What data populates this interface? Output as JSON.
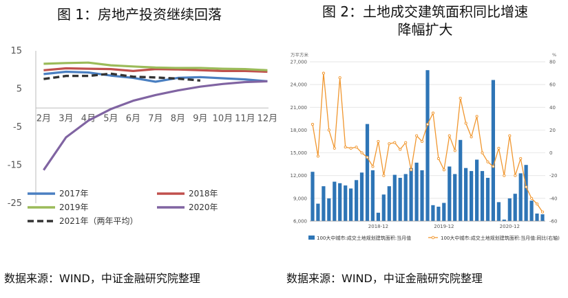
{
  "figure1": {
    "title": "图 1：房地产投资继续回落",
    "source": "数据来源：WIND，中证金融研究院整理"
  },
  "figure2": {
    "title_line1": "图 2：土地成交建筑面积同比增速",
    "title_line2": "降幅扩大",
    "source": "数据来源：WIND，中证金融研究院整理"
  },
  "chart_data": [
    {
      "type": "line",
      "title": "图 1：房地产投资继续回落",
      "categories": [
        "2月",
        "3月",
        "4月",
        "5月",
        "6月",
        "7月",
        "8月",
        "9月",
        "10月",
        "11月",
        "12月"
      ],
      "ylim": [
        -25,
        15
      ],
      "yticks": [
        15,
        5,
        -5,
        -15,
        -25
      ],
      "grid": false,
      "legend_position": "bottom",
      "series": [
        {
          "name": "2017年",
          "color": "#4a7fc1",
          "dashed": false,
          "values": [
            8.9,
            9.5,
            9.3,
            8.5,
            7.9,
            6.9,
            7.9,
            8.1,
            7.8,
            7.5,
            7.0
          ]
        },
        {
          "name": "2018年",
          "color": "#c0504d",
          "dashed": false,
          "values": [
            9.9,
            10.4,
            10.3,
            10.2,
            9.7,
            10.2,
            10.1,
            9.9,
            9.7,
            9.7,
            9.5
          ]
        },
        {
          "name": "2019年",
          "color": "#9bbb59",
          "dashed": false,
          "values": [
            11.6,
            11.8,
            11.9,
            11.2,
            10.9,
            10.6,
            10.5,
            10.5,
            10.3,
            10.2,
            9.9
          ]
        },
        {
          "name": "2020年",
          "color": "#8064a2",
          "dashed": false,
          "values": [
            -16.3,
            -7.7,
            -3.3,
            -0.3,
            1.9,
            3.4,
            4.6,
            5.6,
            6.3,
            6.8,
            7.0
          ]
        },
        {
          "name": "2021年（两年平均）",
          "color": "#333333",
          "dashed": true,
          "values": [
            7.6,
            8.4,
            8.4,
            9.0,
            8.2,
            8.0,
            7.7,
            7.2,
            null,
            null,
            null
          ]
        }
      ]
    },
    {
      "type": "bar",
      "title": "图 2：土地成交建筑面积同比增速降幅扩大",
      "left_unit": "万平方米",
      "right_unit": "%",
      "ylim_left": [
        6000,
        27000
      ],
      "yticks_left": [
        "27,000",
        "24,000",
        "21,000",
        "18,000",
        "15,000",
        "12,000",
        "9,000",
        "6,000"
      ],
      "ylim_right": [
        -60,
        80
      ],
      "yticks_right": [
        80,
        60,
        40,
        20,
        0,
        -20,
        -40,
        -60
      ],
      "x_labels": [
        "2018-12",
        "2019-12",
        "2020-12"
      ],
      "legend_position": "bottom",
      "series": [
        {
          "name": "100大中城市:成交土地规划建筑面积:当月值",
          "kind": "bar",
          "color": "#2e75b6",
          "values": [
            12500,
            8300,
            10600,
            9000,
            11200,
            11000,
            10700,
            10300,
            11400,
            12400,
            18800,
            12700,
            7100,
            9500,
            10600,
            12100,
            11700,
            12200,
            13000,
            13700,
            12700,
            25900,
            8100,
            7900,
            8400,
            13200,
            12200,
            16700,
            13000,
            12600,
            14100,
            12600,
            11700,
            24600,
            8500,
            6200,
            9000,
            9600,
            12300,
            13400,
            8700,
            7000,
            6900
          ]
        },
        {
          "name": "100大中城市:成交土地规划建筑面积:当月值:同比(右轴)",
          "kind": "line",
          "color": "#f0962e",
          "values": [
            25,
            -3,
            70,
            20,
            4,
            66,
            5,
            4,
            5,
            0,
            -4,
            -12,
            10,
            -20,
            8,
            9,
            3,
            9,
            -15,
            15,
            10,
            25,
            35,
            -5,
            -15,
            15,
            2,
            48,
            26,
            14,
            32,
            0,
            -8,
            -12,
            4,
            -20,
            15,
            -20,
            -5,
            -30,
            -40,
            -45,
            -52
          ]
        }
      ]
    }
  ]
}
